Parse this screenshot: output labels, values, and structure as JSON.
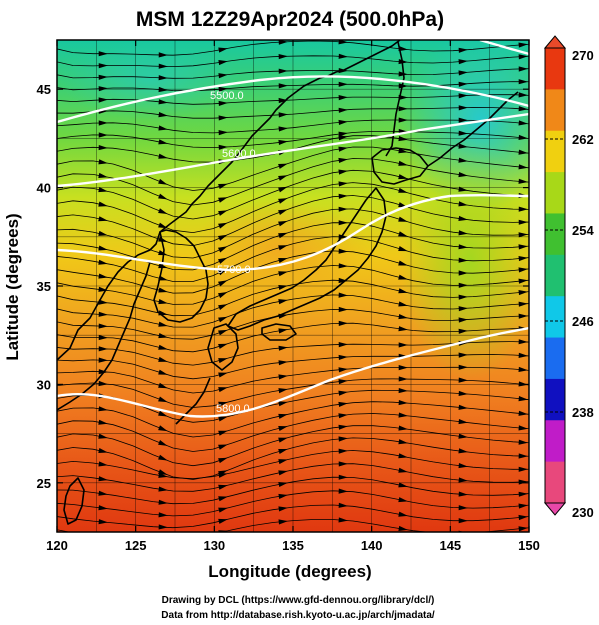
{
  "title": "MSM 12Z29Apr2024 (500.0hPa)",
  "xlabel": "Longitude (degrees)",
  "ylabel": "Latitude  (degrees)",
  "x_ticks": [
    "120",
    "125",
    "130",
    "135",
    "140",
    "145",
    "150"
  ],
  "y_ticks": [
    "25",
    "30",
    "35",
    "40",
    "45"
  ],
  "colorbar": {
    "unit_hint": "temperature (K)",
    "range": [
      230,
      270
    ],
    "tick_labels": [
      "270",
      "262",
      "254",
      "246",
      "238",
      "230"
    ],
    "colors": [
      "#e8487c",
      "#c01cc8",
      "#1010c0",
      "#1a6cf0",
      "#10c8e8",
      "#20c070",
      "#40c030",
      "#a8d818",
      "#f0d010",
      "#f08818",
      "#e83810"
    ]
  },
  "contours": [
    {
      "label": "5500.0",
      "value": 5500
    },
    {
      "label": "5600.0",
      "value": 5600
    },
    {
      "label": "5700.0",
      "value": 5700
    },
    {
      "label": "5800.0",
      "value": 5800
    }
  ],
  "credits": {
    "line1": "Drawing by DCL (https://www.gfd-dennou.org/library/dcl/)",
    "line2": "Data from http://database.rish.kyoto-u.ac.jp/arch/jmadata/"
  },
  "map": {
    "projection": "equirectangular",
    "lon_range": [
      120,
      150
    ],
    "lat_range": [
      22.5,
      47.5
    ],
    "grid": true,
    "features": [
      "temperature-shading",
      "wind-streamlines",
      "height-contours",
      "coastlines"
    ]
  }
}
